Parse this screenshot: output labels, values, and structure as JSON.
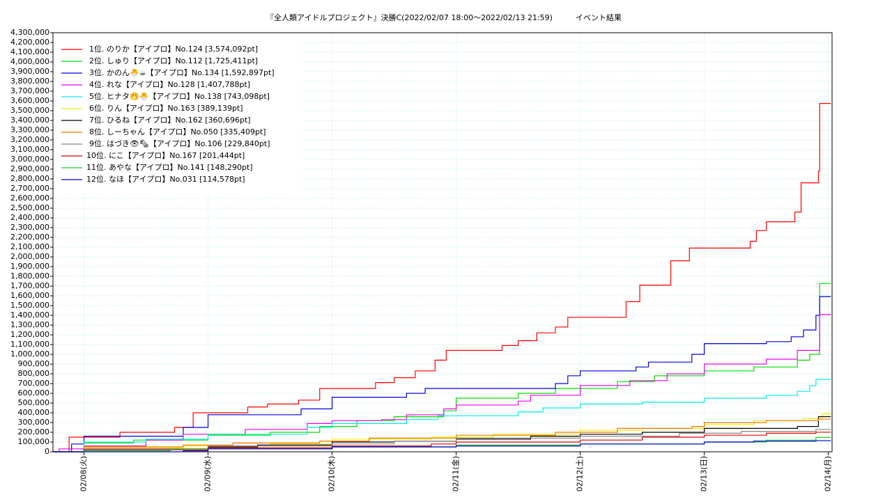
{
  "chart_data": {
    "type": "line",
    "step": "post",
    "grid": true,
    "legend": "upper left",
    "title": "『全人類アイドルプロジェクト』決勝C(2022/02/07 18:00～2022/02/13 21:59)　　　イベント結果",
    "xlim": [
      7.75,
      14.03
    ],
    "xticks": [
      {
        "value": 8,
        "label": "02/08(火)"
      },
      {
        "value": 9,
        "label": "02/09(水)"
      },
      {
        "value": 10,
        "label": "02/10(木)"
      },
      {
        "value": 11,
        "label": "02/11(金)"
      },
      {
        "value": 12,
        "label": "02/12(土)"
      },
      {
        "value": 13,
        "label": "02/13(日)"
      },
      {
        "value": 14,
        "label": "02/14(月)"
      }
    ],
    "ylim": [
      0,
      4300000
    ],
    "yticks": [
      0,
      {
        "value": 100000,
        "label": "100,000"
      },
      {
        "value": 200000,
        "label": "200,000"
      },
      {
        "value": 300000,
        "label": "300,000"
      },
      {
        "value": 400000,
        "label": "400,000"
      },
      {
        "value": 500000,
        "label": "500,000"
      },
      {
        "value": 600000,
        "label": "600,000"
      },
      {
        "value": 700000,
        "label": "700,000"
      },
      {
        "value": 800000,
        "label": "800,000"
      },
      {
        "value": 900000,
        "label": "900,000"
      },
      {
        "value": 1000000,
        "label": "1,000,000"
      },
      {
        "value": 1100000,
        "label": "1,100,000"
      },
      {
        "value": 1200000,
        "label": "1,200,000"
      },
      {
        "value": 1300000,
        "label": "1,300,000"
      },
      {
        "value": 1400000,
        "label": "1,400,000"
      },
      {
        "value": 1500000,
        "label": "1,500,000"
      },
      {
        "value": 1600000,
        "label": "1,600,000"
      },
      {
        "value": 1700000,
        "label": "1,700,000"
      },
      {
        "value": 1800000,
        "label": "1,800,000"
      },
      {
        "value": 1900000,
        "label": "1,900,000"
      },
      {
        "value": 2000000,
        "label": "2,000,000"
      },
      {
        "value": 2100000,
        "label": "2,100,000"
      },
      {
        "value": 2200000,
        "label": "2,200,000"
      },
      {
        "value": 2300000,
        "label": "2,300,000"
      },
      {
        "value": 2400000,
        "label": "2,400,000"
      },
      {
        "value": 2500000,
        "label": "2,500,000"
      },
      {
        "value": 2600000,
        "label": "2,600,000"
      },
      {
        "value": 2700000,
        "label": "2,700,000"
      },
      {
        "value": 2800000,
        "label": "2,800,000"
      },
      {
        "value": 2900000,
        "label": "2,900,000"
      },
      {
        "value": 3000000,
        "label": "3,000,000"
      },
      {
        "value": 3100000,
        "label": "3,100,000"
      },
      {
        "value": 3200000,
        "label": "3,200,000"
      },
      {
        "value": 3300000,
        "label": "3,300,000"
      },
      {
        "value": 3400000,
        "label": "3,400,000"
      },
      {
        "value": 3500000,
        "label": "3,500,000"
      },
      {
        "value": 3600000,
        "label": "3,600,000"
      },
      {
        "value": 3700000,
        "label": "3,700,000"
      },
      {
        "value": 3800000,
        "label": "3,800,000"
      },
      {
        "value": 3900000,
        "label": "3,900,000"
      },
      {
        "value": 4000000,
        "label": "4,000,000"
      },
      {
        "value": 4100000,
        "label": "4,100,000"
      },
      {
        "value": 4200000,
        "label": "4,200,000"
      },
      {
        "value": 4300000,
        "label": "4,300,000"
      }
    ],
    "series": [
      {
        "name": "1位. のりか【アイプロ】No.124 [3,574,092pt]",
        "color": "#ff0000",
        "x": [
          7.75,
          7.88,
          8.29,
          8.73,
          8.88,
          9.32,
          9.48,
          9.73,
          9.9,
          10.35,
          10.5,
          10.67,
          10.83,
          10.92,
          11.37,
          11.5,
          11.65,
          11.8,
          11.9,
          12.37,
          12.48,
          12.73,
          12.88,
          13.37,
          13.42,
          13.5,
          13.73,
          13.78,
          13.92,
          13.93,
          14.02
        ],
        "values": [
          0,
          150000,
          200000,
          250000,
          400000,
          460000,
          490000,
          530000,
          650000,
          710000,
          760000,
          830000,
          940000,
          1040000,
          1090000,
          1140000,
          1220000,
          1280000,
          1380000,
          1540000,
          1710000,
          1960000,
          2090000,
          2160000,
          2270000,
          2360000,
          2460000,
          2760000,
          2880000,
          3574092,
          3574092
        ]
      },
      {
        "name": "2位. しゅり【アイプロ】No.112 [1,725,411pt]",
        "color": "#00dd00",
        "x": [
          7.75,
          8.0,
          8.4,
          9.0,
          9.5,
          9.9,
          10.2,
          10.5,
          10.9,
          11.0,
          11.5,
          11.8,
          12.3,
          12.6,
          13.0,
          13.4,
          13.75,
          13.85,
          13.93,
          14.02
        ],
        "values": [
          0,
          90000,
          120000,
          170000,
          200000,
          260000,
          320000,
          360000,
          420000,
          550000,
          600000,
          650000,
          720000,
          780000,
          830000,
          870000,
          940000,
          1000000,
          1725411,
          1725411
        ]
      },
      {
        "name": "3位. かのん🐣☕【アイプロ】No.134 [1,592,897pt]",
        "color": "#0000dd",
        "x": [
          7.75,
          7.9,
          8.0,
          8.8,
          9.0,
          9.75,
          10.0,
          10.6,
          10.75,
          11.8,
          11.9,
          12.0,
          12.45,
          12.55,
          12.9,
          13.0,
          13.5,
          13.7,
          13.8,
          13.9,
          13.93,
          14.02
        ],
        "values": [
          0,
          80000,
          160000,
          250000,
          380000,
          440000,
          560000,
          600000,
          650000,
          700000,
          780000,
          830000,
          870000,
          920000,
          1000000,
          1110000,
          1130000,
          1180000,
          1250000,
          1400000,
          1592897,
          1592897
        ]
      },
      {
        "name": "4位. れな【アイプロ】No.128 [1,407,788pt]",
        "color": "#ee00ee",
        "x": [
          7.75,
          7.8,
          8.0,
          8.5,
          8.8,
          9.3,
          9.8,
          10.0,
          10.4,
          10.6,
          10.9,
          11.0,
          11.5,
          11.6,
          12.0,
          12.4,
          12.7,
          13.0,
          13.5,
          13.75,
          13.93,
          14.02
        ],
        "values": [
          0,
          30000,
          60000,
          120000,
          180000,
          230000,
          290000,
          320000,
          330000,
          380000,
          440000,
          480000,
          520000,
          580000,
          680000,
          730000,
          800000,
          900000,
          950000,
          1040000,
          1407788,
          1407788
        ]
      },
      {
        "name": "5位. ヒナタ🤭🐣【アイプロ】No.138 [743,098pt]",
        "color": "#00eeee",
        "x": [
          7.75,
          8.0,
          8.5,
          9.0,
          9.8,
          10.0,
          10.6,
          10.85,
          11.5,
          11.7,
          12.0,
          12.5,
          13.0,
          13.5,
          13.75,
          13.85,
          13.9,
          14.02
        ],
        "values": [
          0,
          100000,
          130000,
          180000,
          250000,
          290000,
          330000,
          370000,
          410000,
          450000,
          490000,
          510000,
          550000,
          580000,
          620000,
          680000,
          743098,
          743098
        ]
      },
      {
        "name": "6位. りん【アイプロ】No.163 [389,139pt]",
        "color": "#eeee00",
        "x": [
          7.75,
          8.0,
          8.8,
          9.5,
          10.0,
          10.8,
          11.3,
          12.0,
          12.5,
          13.0,
          13.4,
          13.8,
          13.95,
          14.02
        ],
        "values": [
          0,
          40000,
          60000,
          80000,
          130000,
          150000,
          180000,
          220000,
          240000,
          280000,
          320000,
          340000,
          389139,
          389139
        ]
      },
      {
        "name": "7位. ひるね【アイプロ】No.162 [360,696pt]",
        "color": "#000000",
        "x": [
          7.75,
          8.0,
          9.0,
          9.4,
          10.0,
          10.5,
          11.0,
          11.6,
          12.0,
          12.5,
          13.0,
          13.75,
          13.92,
          14.02
        ],
        "values": [
          0,
          30000,
          50000,
          70000,
          100000,
          110000,
          130000,
          160000,
          180000,
          200000,
          240000,
          260000,
          360696,
          360696
        ]
      },
      {
        "name": "8位. しーちゃん【アイプロ】No.050 [335,409pt]",
        "color": "#ee7700",
        "x": [
          7.75,
          8.0,
          8.8,
          9.2,
          9.9,
          10.3,
          11.0,
          11.8,
          12.3,
          12.9,
          13.0,
          13.5,
          13.92,
          14.02
        ],
        "values": [
          0,
          50000,
          70000,
          90000,
          110000,
          140000,
          170000,
          200000,
          240000,
          260000,
          300000,
          320000,
          335409,
          335409
        ]
      },
      {
        "name": "9位. はづき👁🗞【アイプロ】No.106 [229,840pt]",
        "color": "#888888",
        "x": [
          7.75,
          8.0,
          9.0,
          10.0,
          10.5,
          11.0,
          12.0,
          12.8,
          13.3,
          13.9,
          14.02
        ],
        "values": [
          0,
          30000,
          60000,
          80000,
          110000,
          140000,
          160000,
          190000,
          210000,
          229840,
          229840
        ]
      },
      {
        "name": "10位. にこ【アイプロ】No.167 [201,444pt]",
        "color": "#dd0000",
        "x": [
          7.75,
          8.0,
          9.0,
          10.0,
          10.8,
          11.0,
          12.0,
          12.5,
          13.0,
          13.5,
          13.9,
          14.02
        ],
        "values": [
          0,
          20000,
          40000,
          60000,
          80000,
          100000,
          120000,
          150000,
          170000,
          190000,
          201444,
          201444
        ]
      },
      {
        "name": "11位. あやな【アイプロ】No.141 [148,290pt]",
        "color": "#22cc22",
        "x": [
          7.75,
          8.0,
          8.7,
          10.0,
          11.0,
          12.0,
          13.0,
          13.5,
          13.9,
          14.02
        ],
        "values": [
          0,
          10000,
          30000,
          50000,
          70000,
          80000,
          100000,
          120000,
          148290,
          148290
        ]
      },
      {
        "name": "12位. なほ【アイプロ】No.031 [114,578pt]",
        "color": "#0000cc",
        "x": [
          7.75,
          8.8,
          9.0,
          10.0,
          11.0,
          12.0,
          13.0,
          13.4,
          13.9,
          14.02
        ],
        "values": [
          0,
          10000,
          30000,
          50000,
          60000,
          80000,
          100000,
          110000,
          114578,
          114578
        ]
      }
    ]
  }
}
